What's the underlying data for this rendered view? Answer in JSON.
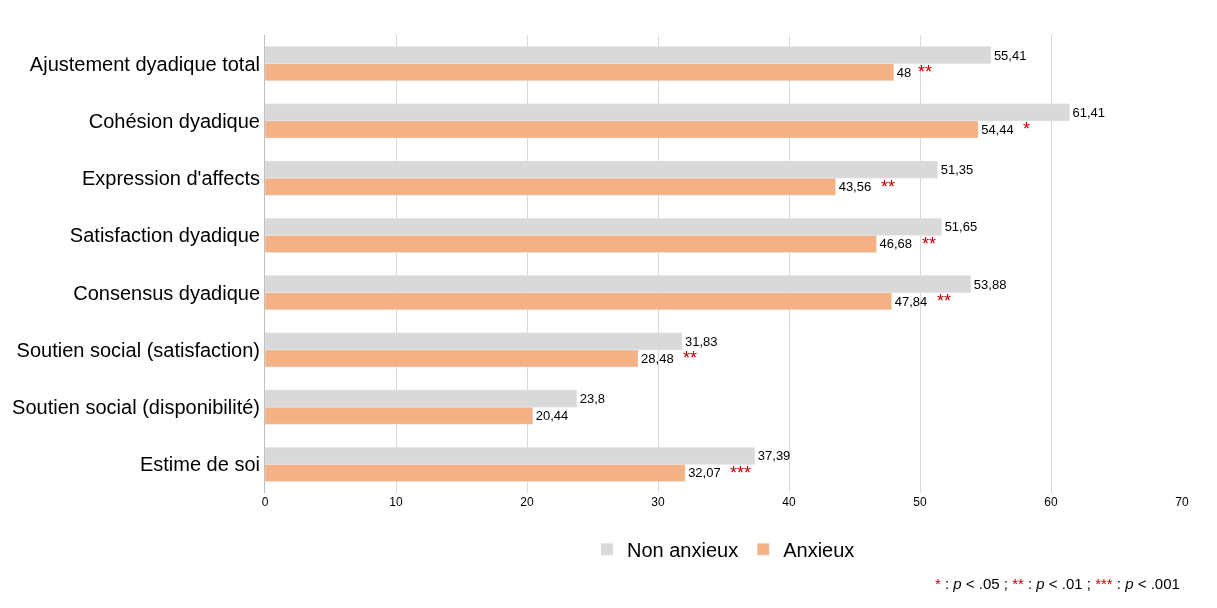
{
  "chart_data": {
    "type": "bar",
    "orientation": "horizontal",
    "categories": [
      "Ajustement dyadique total",
      "Cohésion dyadique",
      "Expression d'affects",
      "Satisfaction dyadique",
      "Consensus dyadique",
      "Soutien social (satisfaction)",
      "Soutien social (disponibilité)",
      "Estime de soi"
    ],
    "series": [
      {
        "name": "Non anxieux",
        "color": "#d9d9d9",
        "values": [
          55.41,
          61.41,
          51.35,
          51.65,
          53.88,
          31.83,
          23.8,
          37.39
        ],
        "value_labels": [
          "55,41",
          "61,41",
          "51,35",
          "51,65",
          "53,88",
          "31,83",
          "23,8",
          "37,39"
        ]
      },
      {
        "name": "Anxieux",
        "color": "#f4b183",
        "values": [
          48,
          54.44,
          43.56,
          46.68,
          47.84,
          28.48,
          20.44,
          32.07
        ],
        "value_labels": [
          "48",
          "54,44",
          "43,56",
          "46,68",
          "47,84",
          "28,48",
          "20,44",
          "32,07"
        ]
      }
    ],
    "xlim": [
      0,
      70
    ],
    "xticks": [
      0,
      10,
      20,
      30,
      40,
      50,
      60,
      70
    ],
    "grid": "x",
    "legend": "bottom",
    "annotations": [
      {
        "text": "**",
        "x": 48,
        "y": "Ajustement dyadique total"
      },
      {
        "text": "*",
        "x": 54.44,
        "y": "Cohésion dyadique"
      },
      {
        "text": "**",
        "x": 43.56,
        "y": "Expression d'affects"
      },
      {
        "text": "**",
        "x": 46.68,
        "y": "Satisfaction dyadique"
      },
      {
        "text": "**",
        "x": 47.84,
        "y": "Consensus dyadique"
      },
      {
        "text": "**",
        "x": 28.48,
        "y": "Soutien social (satisfaction)"
      },
      {
        "text": "***",
        "x": 32.07,
        "y": "Estime de soi"
      },
      "* : p < .05 ; ** : p < .01 ; *** : p < .001"
    ]
  }
}
